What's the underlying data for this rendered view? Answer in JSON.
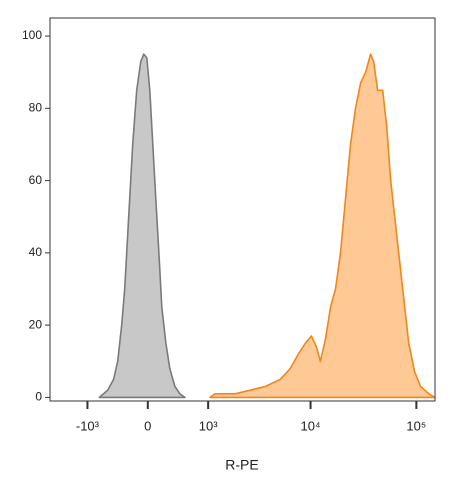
{
  "chart_data": {
    "type": "area",
    "x_label": "R-PE",
    "x_scale": "biexponential",
    "xlim": [
      -2400,
      150000
    ],
    "xticks": [
      {
        "value": -1000,
        "label": "-10³"
      },
      0,
      {
        "value": 1000,
        "label": "10³"
      },
      {
        "value": 10000,
        "label": "10⁴"
      },
      {
        "value": 100000,
        "label": "10⁵"
      }
    ],
    "ylim": [
      -1,
      105
    ],
    "yticks": [
      0,
      20,
      40,
      60,
      80,
      100
    ],
    "series": [
      {
        "color": "#c8c8c8",
        "line_color": "#7a7a7a",
        "x": [
          -729,
          -573,
          -472,
          -408,
          -347,
          -304,
          -276,
          -234,
          -194,
          -141,
          -89,
          -50,
          -13,
          25,
          63,
          102,
          141,
          180,
          234,
          289,
          362,
          439,
          521
        ],
        "values": [
          0,
          2,
          5,
          10,
          20,
          30,
          40,
          55,
          70,
          85,
          93,
          95,
          94,
          85,
          70,
          55,
          40,
          25,
          15,
          8,
          3,
          1,
          0
        ]
      },
      {
        "color": "#ffc996",
        "line_color": "#f0861c",
        "x": [
          1044,
          1183,
          1896,
          2656,
          3712,
          5168,
          6432,
          7662,
          8926,
          10173,
          11351,
          12383,
          13821,
          15422,
          17203,
          19192,
          21402,
          23838,
          26622,
          29696,
          33118,
          36946,
          39440,
          43036,
          48024,
          52432,
          57188,
          65192,
          74298,
          84680,
          96512,
          109968,
          130964,
          149292
        ],
        "values": [
          0,
          1,
          1,
          2,
          3,
          5,
          8,
          12,
          15,
          17,
          14,
          10,
          16,
          25,
          30,
          40,
          55,
          70,
          80,
          87,
          90,
          95,
          93,
          85,
          85,
          75,
          60,
          45,
          30,
          15,
          7,
          3,
          1,
          0
        ]
      }
    ]
  }
}
